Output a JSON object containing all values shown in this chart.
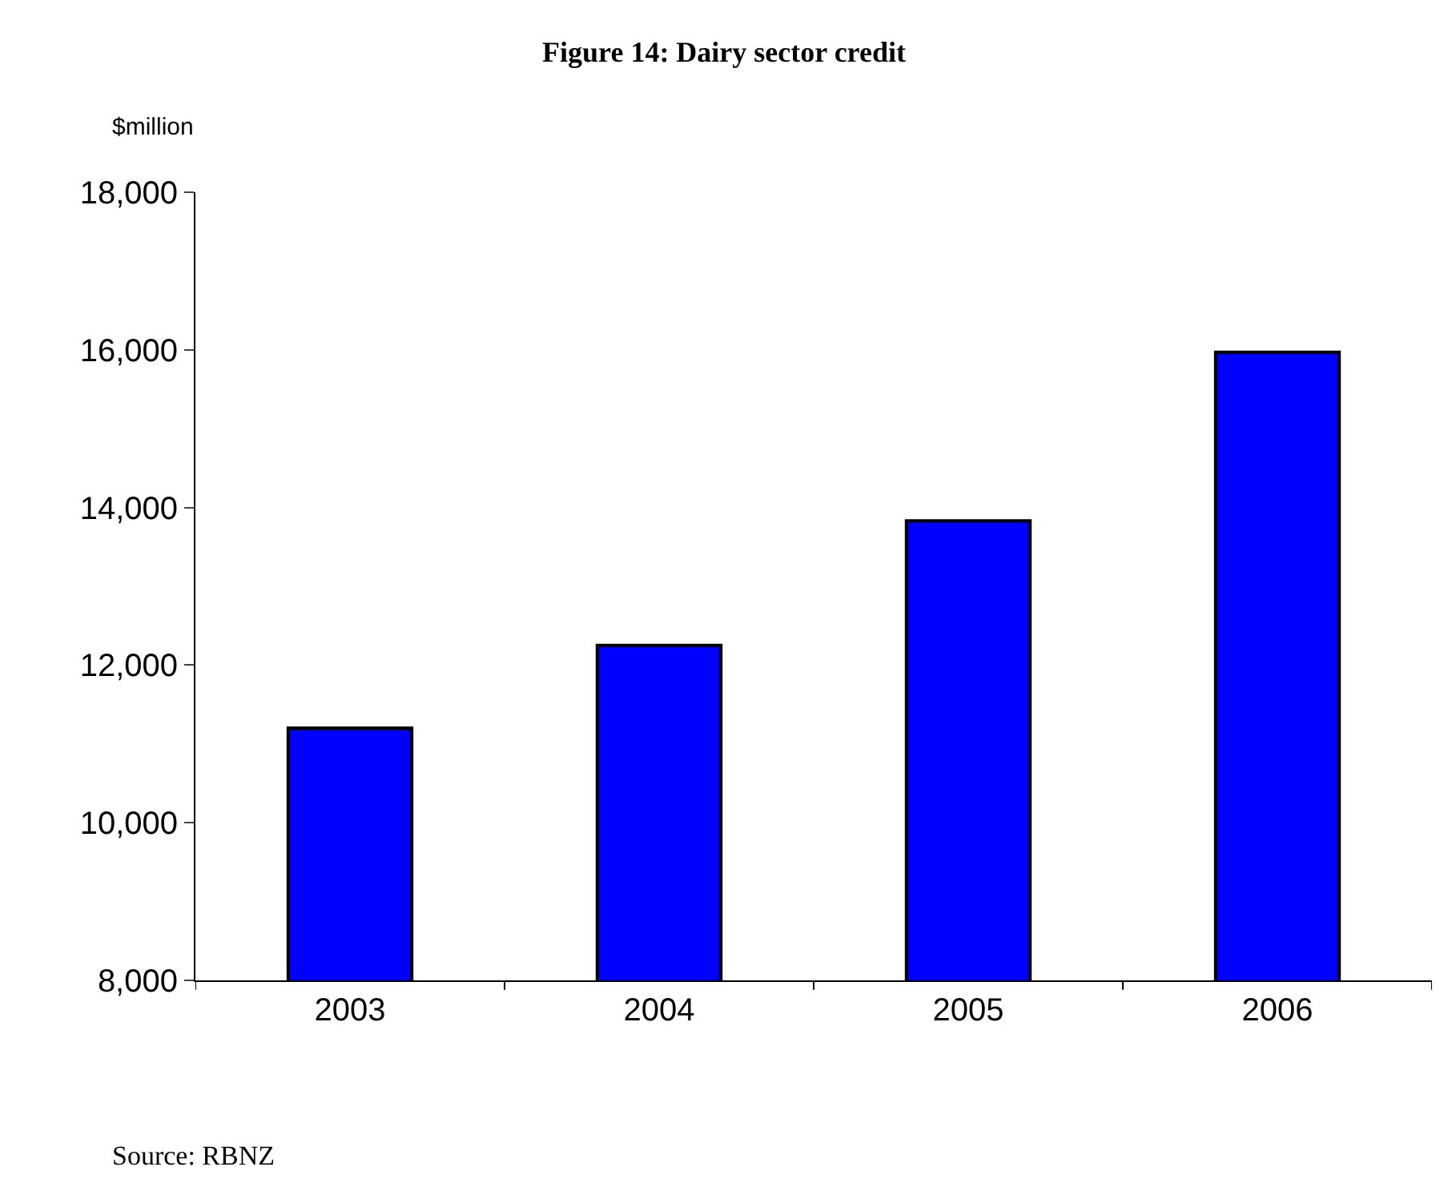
{
  "chart_data": {
    "type": "bar",
    "title": "Figure 14: Dairy sector credit",
    "ylabel": "$million",
    "categories": [
      "2003",
      "2004",
      "2005",
      "2006"
    ],
    "values": [
      11200,
      12250,
      13830,
      15970
    ],
    "color": "#0000ff",
    "ylim": [
      8000,
      18000
    ],
    "yticks": [
      {
        "value": 8000,
        "label": "8,000"
      },
      {
        "value": 10000,
        "label": "10,000"
      },
      {
        "value": 12000,
        "label": "12,000"
      },
      {
        "value": 14000,
        "label": "14,000"
      },
      {
        "value": 16000,
        "label": "16,000"
      },
      {
        "value": 18000,
        "label": "18,000"
      }
    ],
    "annotations": [
      "Source: RBNZ"
    ]
  }
}
